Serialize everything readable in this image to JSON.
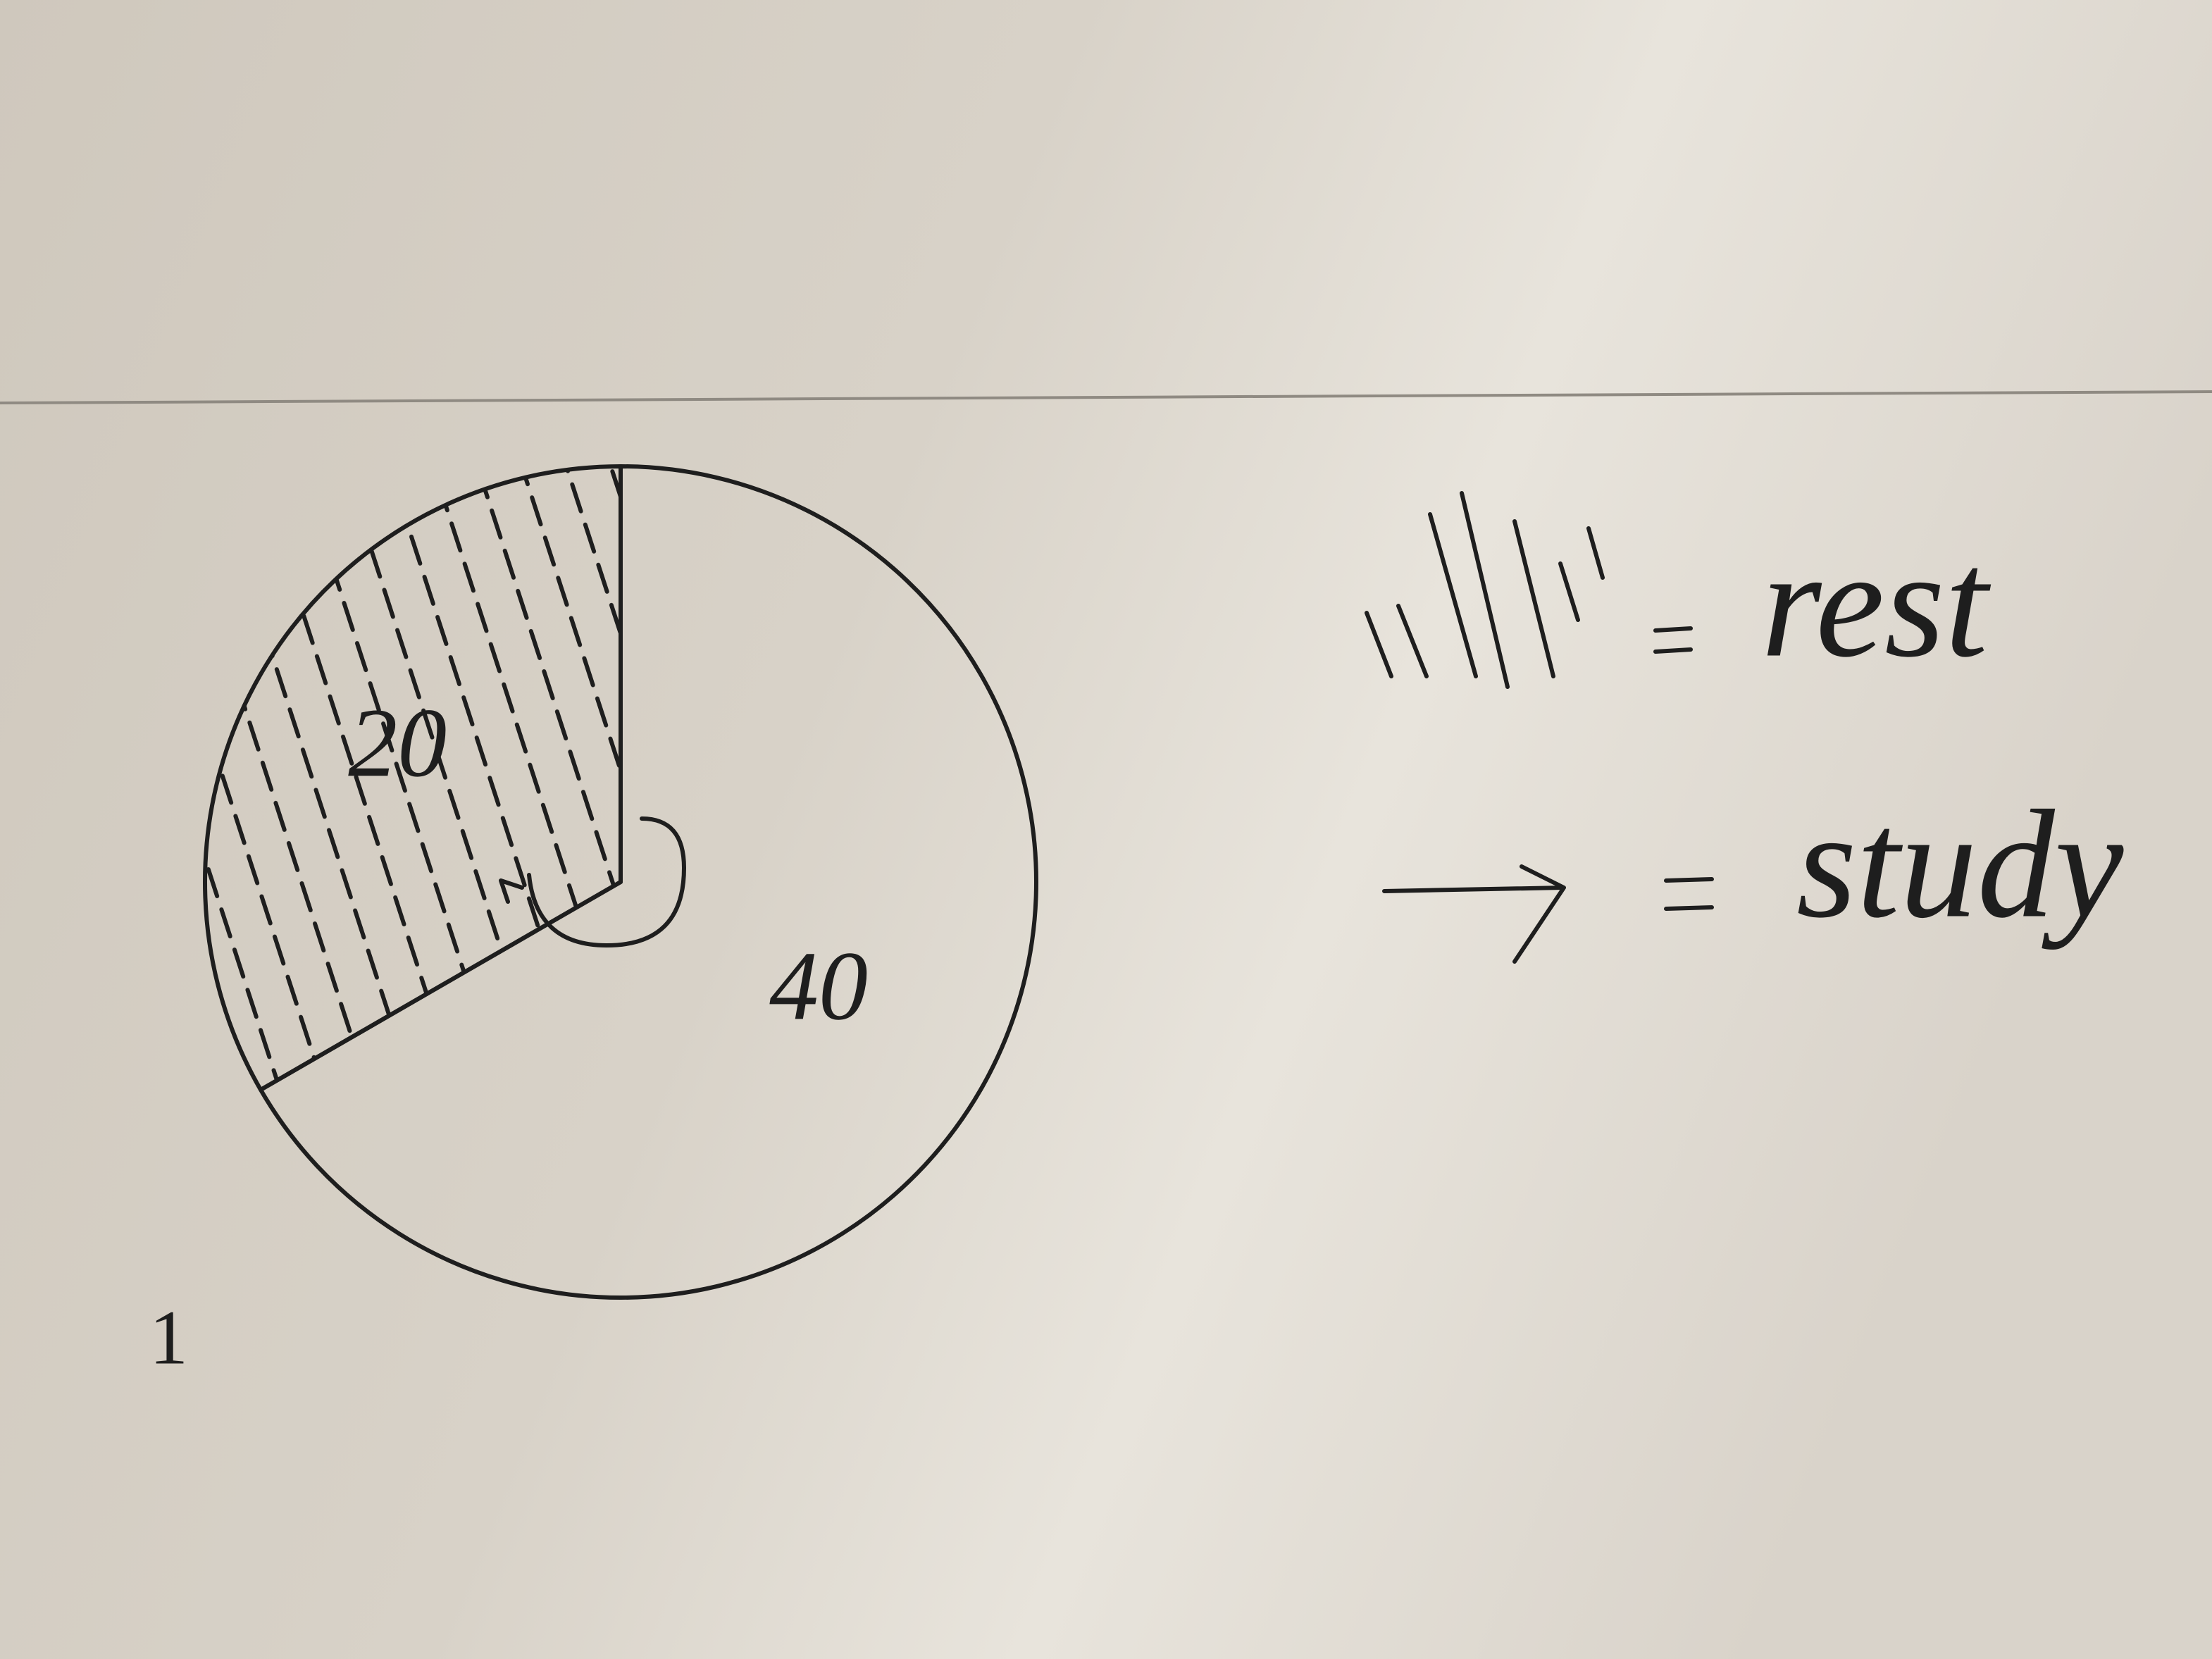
{
  "chart_data": {
    "type": "pie",
    "categories": [
      "rest",
      "study"
    ],
    "values": [
      20,
      40
    ],
    "colors": [
      "#1e1e1e",
      "#1e1e1e"
    ],
    "annotations": [
      "1"
    ]
  }
}
